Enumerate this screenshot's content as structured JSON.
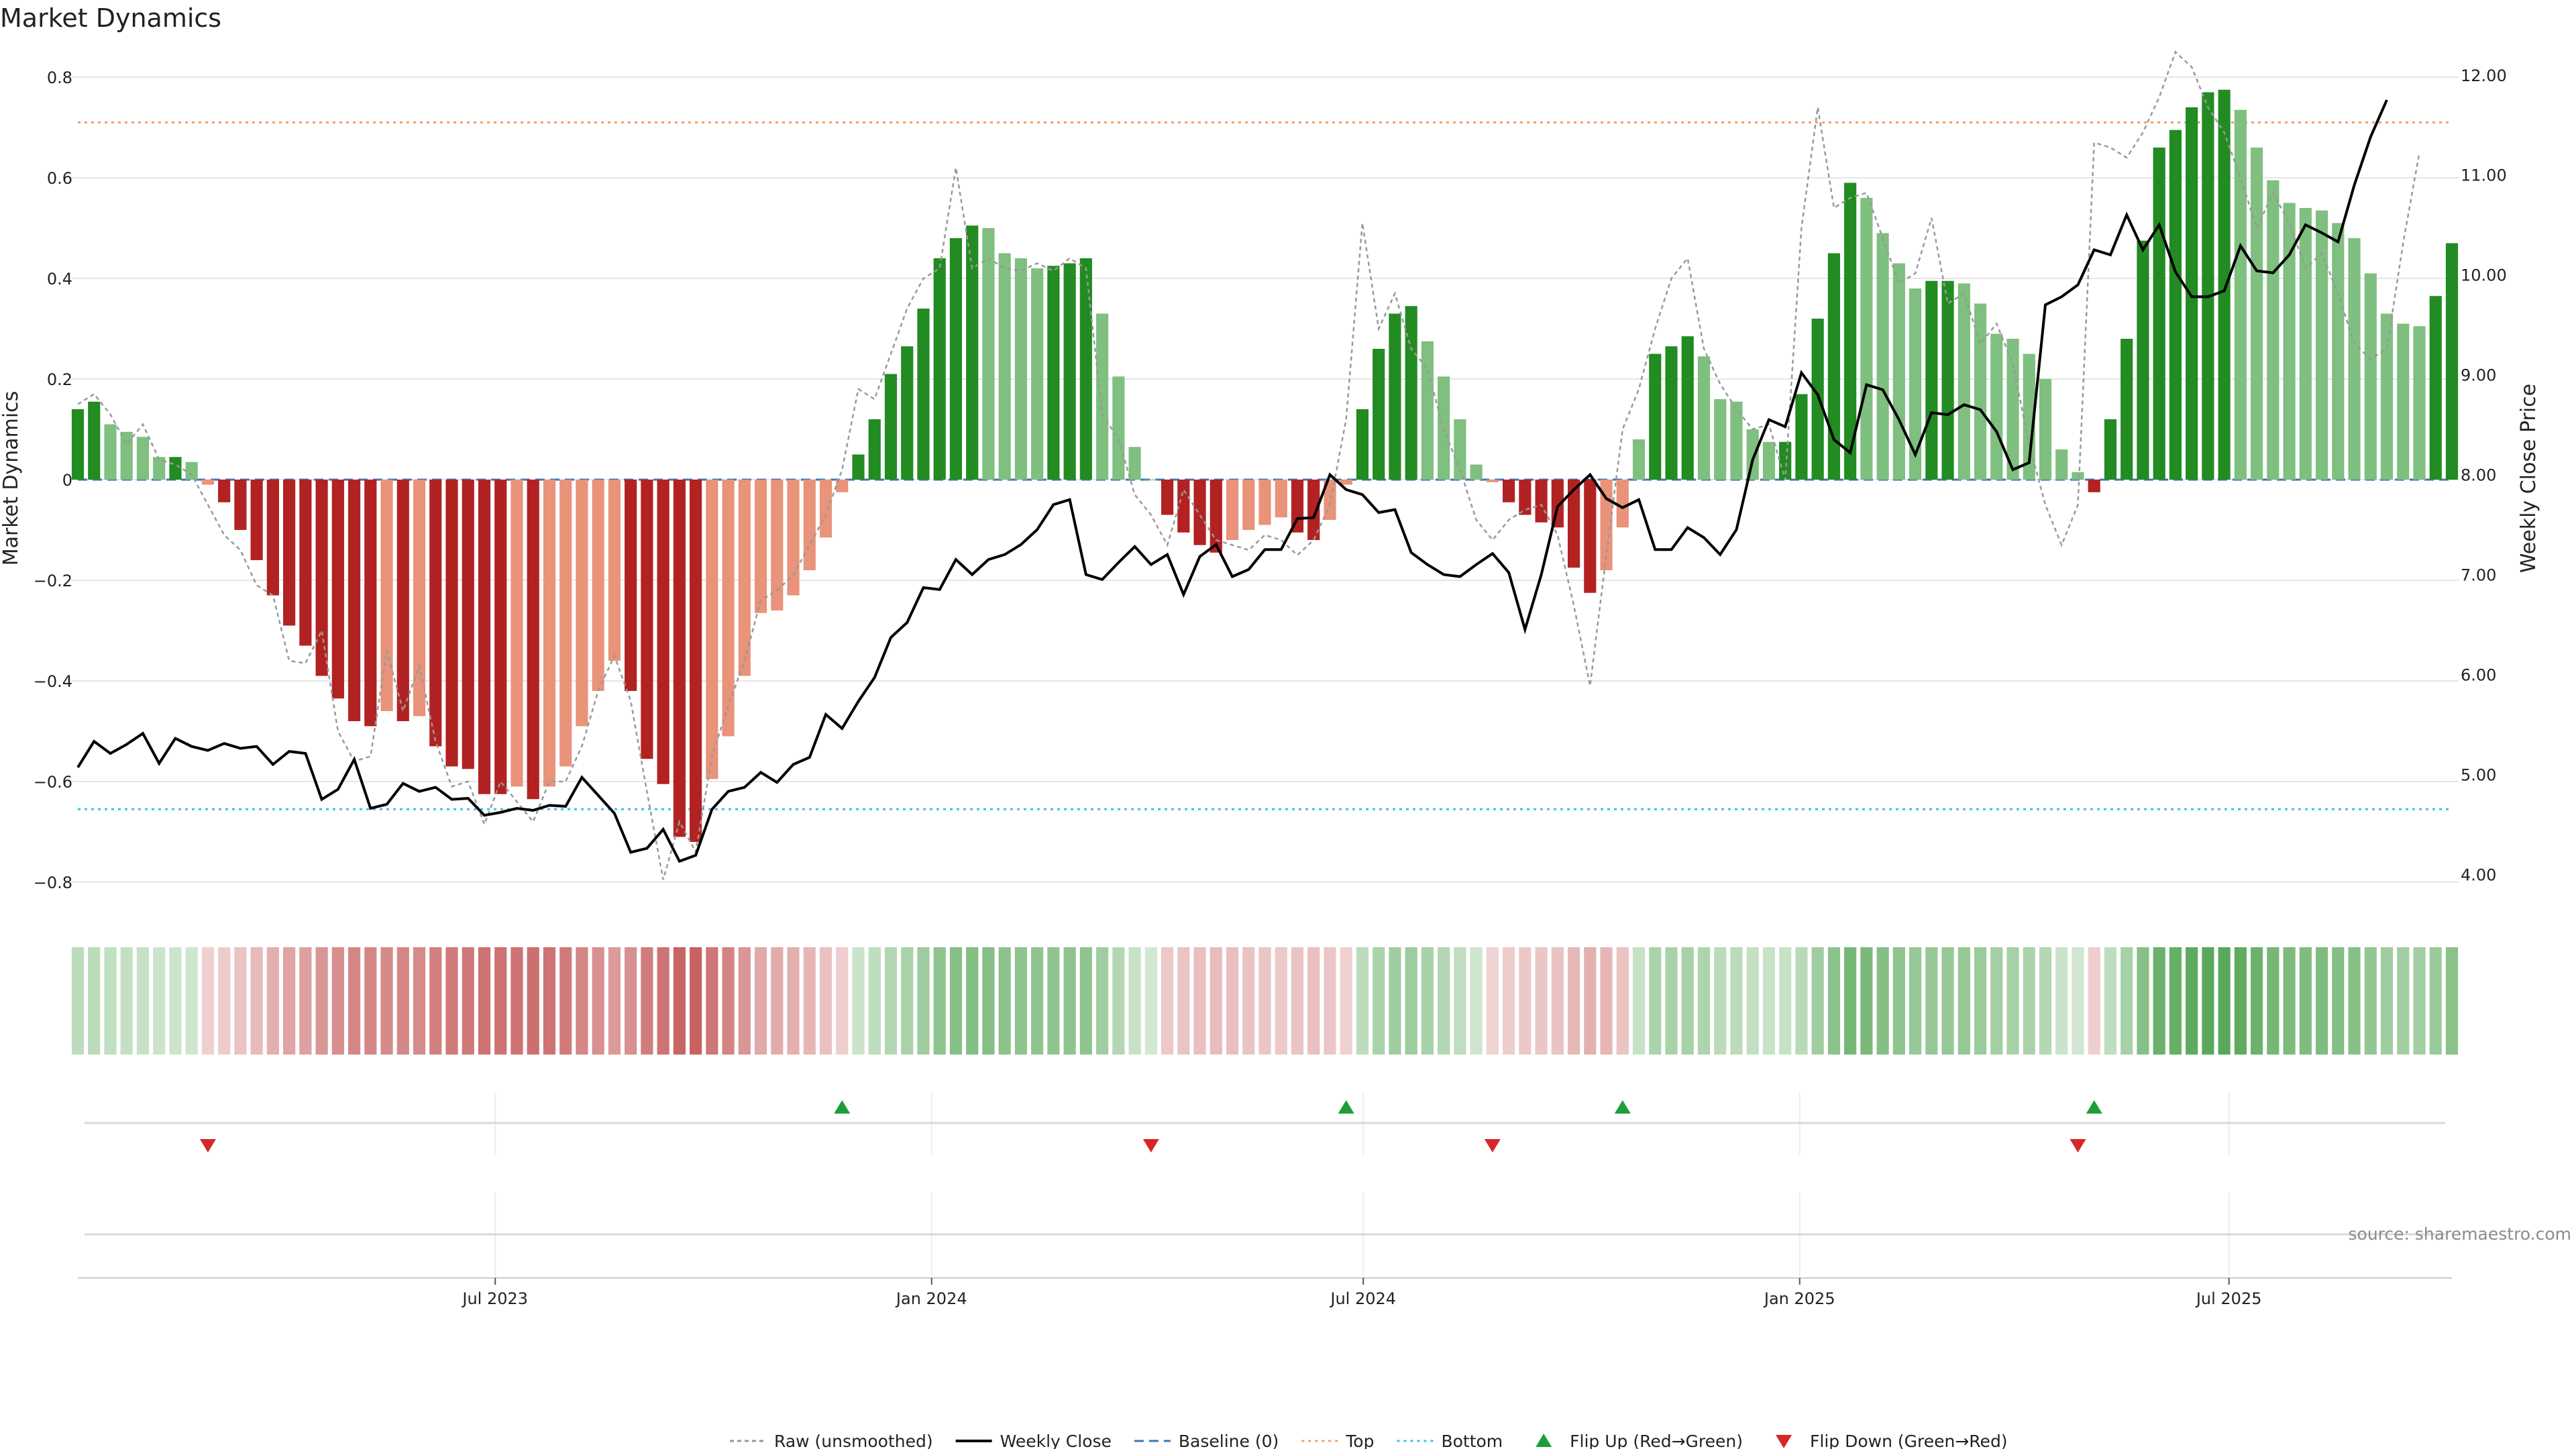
{
  "title": "Market Dynamics",
  "source": "source: sharemaestro.com",
  "colors": {
    "strong_green": "#228b22",
    "light_green": "#7fbf7f",
    "strong_red": "#b22222",
    "light_red": "#e8937a",
    "raw_line": "#999999",
    "close_line": "#000000",
    "baseline": "#3a78b5",
    "top": "#f0a070",
    "bottom": "#3ec4d6",
    "flip_up": "#1e9e3a",
    "flip_down": "#d62728"
  },
  "legend": [
    {
      "label": "Raw (unsmoothed)",
      "style": "raw"
    },
    {
      "label": "Weekly Close",
      "style": "close"
    },
    {
      "label": "Baseline (0)",
      "style": "baseline"
    },
    {
      "label": "Top",
      "style": "top"
    },
    {
      "label": "Bottom",
      "style": "bottom"
    },
    {
      "label": "Flip Up (Red→Green)",
      "style": "flip_up"
    },
    {
      "label": "Flip Down (Green→Red)",
      "style": "flip_down"
    }
  ],
  "chart_data": {
    "type": "bar",
    "title": "Market Dynamics",
    "x_start": "2023-01-06",
    "x_end": "2025-10-03",
    "x_ticks": [
      {
        "date": "2023-07-01",
        "label": "Jul 2023"
      },
      {
        "date": "2024-01-01",
        "label": "Jan 2024"
      },
      {
        "date": "2024-07-01",
        "label": "Jul 2024"
      },
      {
        "date": "2025-01-01",
        "label": "Jan 2025"
      },
      {
        "date": "2025-07-01",
        "label": "Jul 2025"
      }
    ],
    "left_axis": {
      "label": "Market Dynamics",
      "ylim": [
        -0.84,
        0.84
      ],
      "ticks": [
        {
          "v": 0.8,
          "t": "0.8"
        },
        {
          "v": 0.6,
          "t": "0.6"
        },
        {
          "v": 0.4,
          "t": "0.4"
        },
        {
          "v": 0.2,
          "t": "0.2"
        },
        {
          "v": 0,
          "t": "0"
        },
        {
          "v": -0.2,
          "t": "−0.2"
        },
        {
          "v": -0.4,
          "t": "−0.4"
        },
        {
          "v": -0.6,
          "t": "−0.6"
        },
        {
          "v": -0.8,
          "t": "−0.8"
        }
      ]
    },
    "right_axis": {
      "label": "Weekly Close Price",
      "ylim": [
        3.72,
        12.18
      ],
      "ticks": [
        {
          "v": 12,
          "t": "12.00"
        },
        {
          "v": 11,
          "t": "11.00"
        },
        {
          "v": 10,
          "t": "10.00"
        },
        {
          "v": 9,
          "t": "9.00"
        },
        {
          "v": 8,
          "t": "8.00"
        },
        {
          "v": 7,
          "t": "7.00"
        },
        {
          "v": 6,
          "t": "6.00"
        },
        {
          "v": 5,
          "t": "5.00"
        },
        {
          "v": 4,
          "t": "4.00"
        }
      ]
    },
    "reference_lines": {
      "baseline": 0,
      "top": 0.71,
      "bottom": -0.655
    },
    "series": [
      {
        "name": "Market Dynamics",
        "values": [
          0.14,
          0.155,
          0.11,
          0.095,
          0.085,
          0.045,
          0.045,
          0.035,
          -0.01,
          -0.045,
          -0.1,
          -0.16,
          -0.23,
          -0.29,
          -0.33,
          -0.39,
          -0.435,
          -0.48,
          -0.49,
          -0.46,
          -0.48,
          -0.47,
          -0.53,
          -0.57,
          -0.575,
          -0.625,
          -0.625,
          -0.61,
          -0.635,
          -0.61,
          -0.57,
          -0.49,
          -0.42,
          -0.36,
          -0.42,
          -0.555,
          -0.605,
          -0.71,
          -0.72,
          -0.595,
          -0.51,
          -0.39,
          -0.265,
          -0.26,
          -0.23,
          -0.18,
          -0.115,
          -0.025,
          0.05,
          0.12,
          0.21,
          0.265,
          0.34,
          0.44,
          0.48,
          0.505,
          0.5,
          0.45,
          0.44,
          0.42,
          0.425,
          0.43,
          0.44,
          0.33,
          0.205,
          0.065,
          0.0,
          -0.07,
          -0.105,
          -0.13,
          -0.145,
          -0.12,
          -0.1,
          -0.09,
          -0.075,
          -0.105,
          -0.12,
          -0.08,
          -0.01,
          0.14,
          0.26,
          0.33,
          0.345,
          0.275,
          0.205,
          0.12,
          0.03,
          -0.005,
          -0.045,
          -0.07,
          -0.085,
          -0.095,
          -0.175,
          -0.225,
          -0.18,
          -0.095,
          0.08,
          0.25,
          0.265,
          0.285,
          0.245,
          0.16,
          0.155,
          0.1,
          0.075,
          0.075,
          0.17,
          0.32,
          0.45,
          0.59,
          0.56,
          0.49,
          0.43,
          0.38,
          0.395,
          0.395,
          0.39,
          0.35,
          0.29,
          0.28,
          0.25,
          0.2,
          0.06,
          0.015,
          -0.025,
          0.12,
          0.28,
          0.475,
          0.66,
          0.695,
          0.74,
          0.77,
          0.775,
          0.735,
          0.66,
          0.595,
          0.55,
          0.54,
          0.535,
          0.51,
          0.48,
          0.41,
          0.33,
          0.31,
          0.305,
          0.365,
          0.47
        ]
      },
      {
        "name": "Raw (unsmoothed)",
        "values": [
          0.15,
          0.17,
          0.13,
          0.07,
          0.11,
          0.04,
          0.03,
          0.01,
          -0.05,
          -0.11,
          -0.14,
          -0.21,
          -0.23,
          -0.36,
          -0.365,
          -0.3,
          -0.5,
          -0.56,
          -0.55,
          -0.34,
          -0.46,
          -0.37,
          -0.52,
          -0.61,
          -0.6,
          -0.685,
          -0.6,
          -0.64,
          -0.68,
          -0.6,
          -0.6,
          -0.53,
          -0.42,
          -0.35,
          -0.44,
          -0.62,
          -0.795,
          -0.68,
          -0.74,
          -0.55,
          -0.45,
          -0.36,
          -0.24,
          -0.22,
          -0.19,
          -0.13,
          -0.07,
          0.02,
          0.18,
          0.16,
          0.25,
          0.34,
          0.4,
          0.42,
          0.62,
          0.42,
          0.44,
          0.42,
          0.415,
          0.43,
          0.415,
          0.44,
          0.42,
          0.13,
          0.08,
          -0.03,
          -0.07,
          -0.13,
          -0.02,
          -0.07,
          -0.12,
          -0.13,
          -0.14,
          -0.11,
          -0.12,
          -0.15,
          -0.12,
          -0.05,
          0.12,
          0.51,
          0.3,
          0.37,
          0.26,
          0.22,
          0.1,
          0.02,
          -0.08,
          -0.12,
          -0.08,
          -0.06,
          -0.05,
          -0.11,
          -0.25,
          -0.41,
          -0.15,
          0.1,
          0.18,
          0.3,
          0.4,
          0.44,
          0.26,
          0.19,
          0.14,
          0.1,
          0.11,
          0.0,
          0.5,
          0.74,
          0.54,
          0.56,
          0.57,
          0.48,
          0.39,
          0.41,
          0.52,
          0.35,
          0.37,
          0.27,
          0.31,
          0.23,
          0.07,
          -0.05,
          -0.13,
          -0.05,
          0.67,
          0.66,
          0.64,
          0.69,
          0.76,
          0.85,
          0.82,
          0.74,
          0.69,
          0.6,
          0.5,
          0.57,
          0.51,
          0.42,
          0.45,
          0.37,
          0.27,
          0.24,
          0.26,
          0.47,
          0.65
        ]
      },
      {
        "name": "Weekly Close",
        "values": [
          5.07,
          5.33,
          5.21,
          5.3,
          5.41,
          5.11,
          5.36,
          5.28,
          5.24,
          5.31,
          5.26,
          5.28,
          5.1,
          5.23,
          5.21,
          4.75,
          4.85,
          5.15,
          4.66,
          4.7,
          4.91,
          4.83,
          4.87,
          4.75,
          4.76,
          4.59,
          4.62,
          4.66,
          4.64,
          4.69,
          4.68,
          4.97,
          4.79,
          4.61,
          4.22,
          4.26,
          4.45,
          4.13,
          4.19,
          4.65,
          4.83,
          4.87,
          5.02,
          4.92,
          5.1,
          5.17,
          5.6,
          5.46,
          5.73,
          5.97,
          6.37,
          6.52,
          6.87,
          6.85,
          7.15,
          7.0,
          7.15,
          7.2,
          7.3,
          7.45,
          7.7,
          7.75,
          7.0,
          6.95,
          7.12,
          7.28,
          7.1,
          7.2,
          6.8,
          7.18,
          7.3,
          6.98,
          7.05,
          7.25,
          7.25,
          7.56,
          7.57,
          8.0,
          7.85,
          7.8,
          7.62,
          7.65,
          7.22,
          7.1,
          7.0,
          6.98,
          7.1,
          7.21,
          7.02,
          6.45,
          7.0,
          7.68,
          7.85,
          8.0,
          7.76,
          7.67,
          7.75,
          7.25,
          7.25,
          7.47,
          7.37,
          7.2,
          7.45,
          8.15,
          8.55,
          8.48,
          9.02,
          8.8,
          8.35,
          8.22,
          8.9,
          8.85,
          8.55,
          8.2,
          8.62,
          8.6,
          8.7,
          8.65,
          8.43,
          8.05,
          8.12,
          9.7,
          9.78,
          9.9,
          10.25,
          10.2,
          10.6,
          10.25,
          10.5,
          10.03,
          9.78,
          9.78,
          9.84,
          10.29,
          10.04,
          10.02,
          10.2,
          10.5,
          10.42,
          10.33,
          10.9,
          11.38,
          11.75
        ]
      }
    ],
    "flips": [
      {
        "type": "up",
        "index": 47
      },
      {
        "type": "up",
        "index": 78
      },
      {
        "type": "up",
        "index": 95
      },
      {
        "type": "up",
        "index": 124
      },
      {
        "type": "down",
        "index": 8
      },
      {
        "type": "down",
        "index": 66
      },
      {
        "type": "down",
        "index": 87
      },
      {
        "type": "down",
        "index": 123
      }
    ]
  }
}
